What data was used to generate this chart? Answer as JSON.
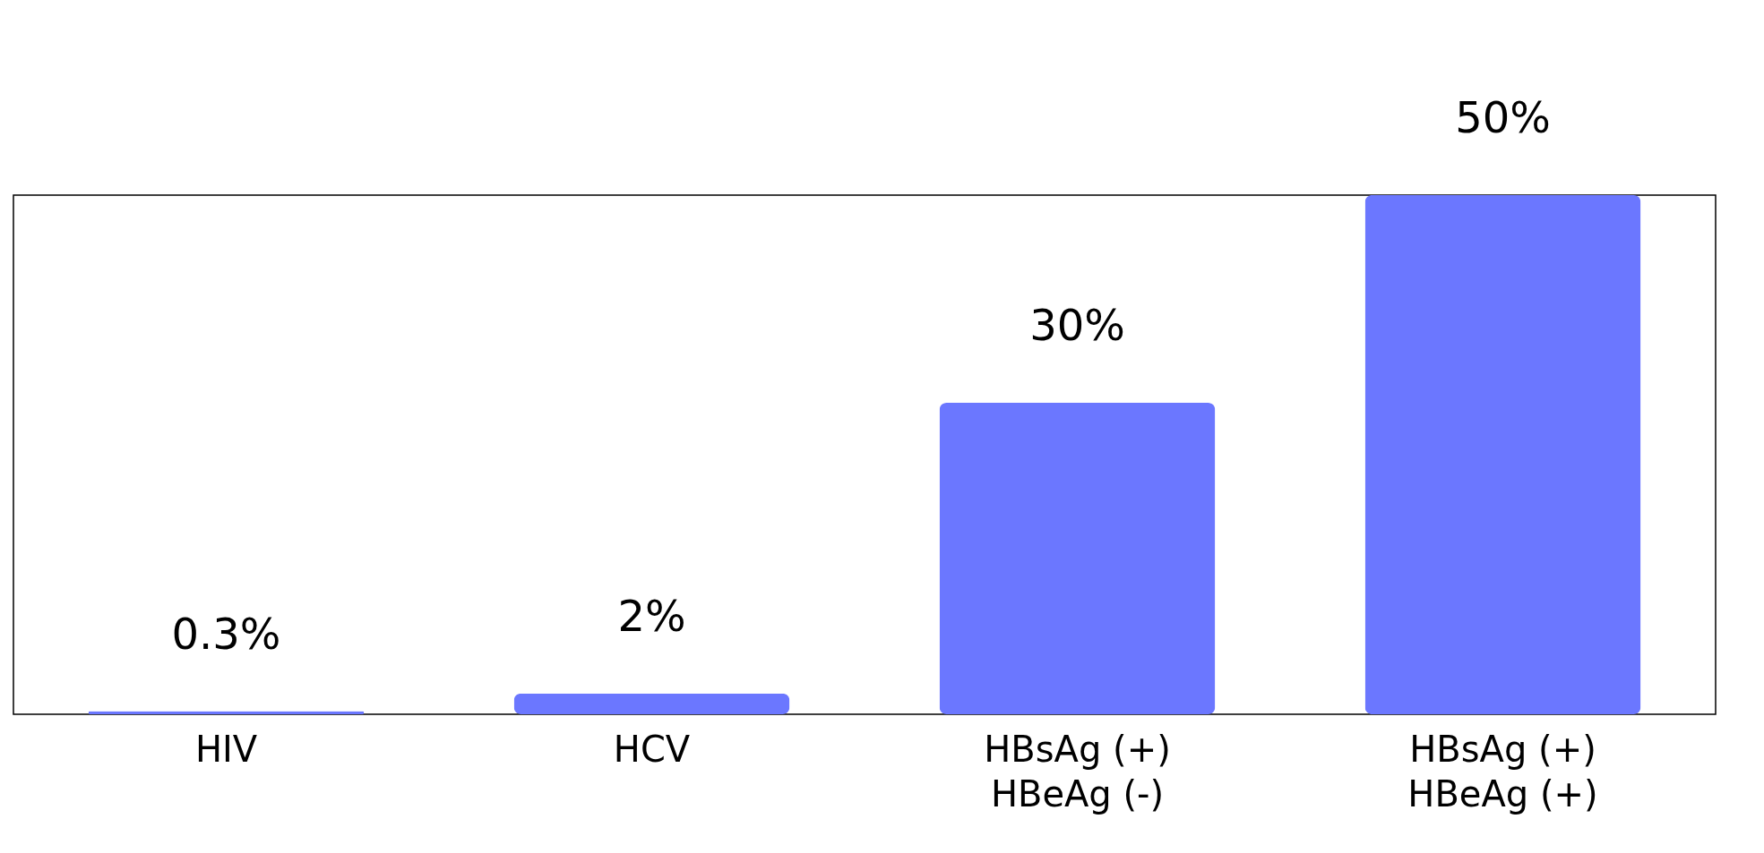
{
  "chart_data": {
    "type": "bar",
    "categories": [
      "HIV",
      "HCV",
      "HBsAg (+)\nHBeAg (-)",
      "HBsAg (+)\nHBeAg (+)"
    ],
    "values": [
      0.3,
      2,
      30,
      50
    ],
    "value_labels": [
      "0.3%",
      "2%",
      "30%",
      "50%"
    ],
    "color": "#6b77ff",
    "grid": false
  }
}
